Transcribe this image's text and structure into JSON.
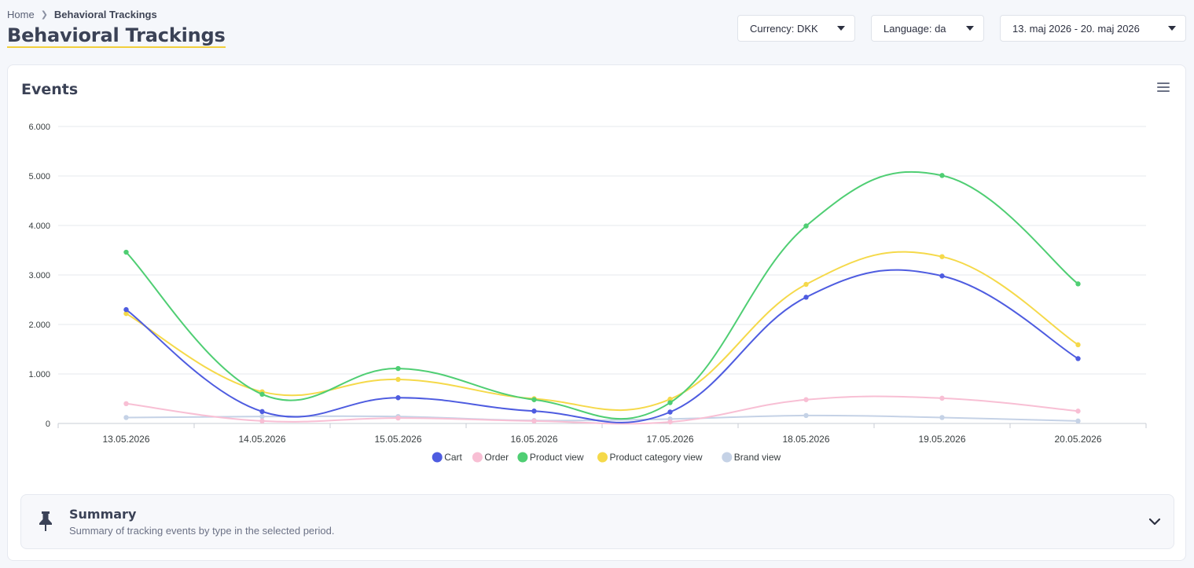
{
  "breadcrumb": {
    "home": "Home",
    "current": "Behavioral Trackings"
  },
  "page_title": "Behavioral Trackings",
  "filters": {
    "currency": "Currency: DKK",
    "language": "Language: da",
    "date_range": "13. maj 2026 - 20. maj 2026"
  },
  "card": {
    "title": "Events"
  },
  "summary": {
    "title": "Summary",
    "description": "Summary of tracking events by type in the selected period."
  },
  "colors": {
    "cart": "#4e5ce0",
    "order": "#f8bfd4",
    "product_view": "#4fce73",
    "product_category_view": "#f5d94a",
    "brand_view": "#c5d2e6"
  },
  "chart_data": {
    "type": "line",
    "categories": [
      "13.05.2026",
      "14.05.2026",
      "15.05.2026",
      "16.05.2026",
      "17.05.2026",
      "18.05.2026",
      "19.05.2026",
      "20.05.2026"
    ],
    "yticks": [
      "0",
      "1.000",
      "2.000",
      "3.000",
      "4.000",
      "5.000",
      "6.000"
    ],
    "ylim": [
      0,
      6000
    ],
    "grid": true,
    "legend_position": "bottom",
    "series": [
      {
        "name": "Cart",
        "color": "#4e5ce0",
        "values": [
          2300,
          240,
          520,
          250,
          230,
          2550,
          2980,
          1310
        ]
      },
      {
        "name": "Order",
        "color": "#f8bfd4",
        "values": [
          400,
          50,
          110,
          50,
          30,
          480,
          510,
          250
        ]
      },
      {
        "name": "Product view",
        "color": "#4fce73",
        "values": [
          3460,
          590,
          1110,
          480,
          420,
          3990,
          5010,
          2820
        ]
      },
      {
        "name": "Product category view",
        "color": "#f5d94a",
        "values": [
          2220,
          640,
          890,
          500,
          490,
          2810,
          3370,
          1590
        ]
      },
      {
        "name": "Brand view",
        "color": "#c5d2e6",
        "values": [
          120,
          140,
          140,
          60,
          90,
          160,
          120,
          50
        ]
      }
    ]
  }
}
